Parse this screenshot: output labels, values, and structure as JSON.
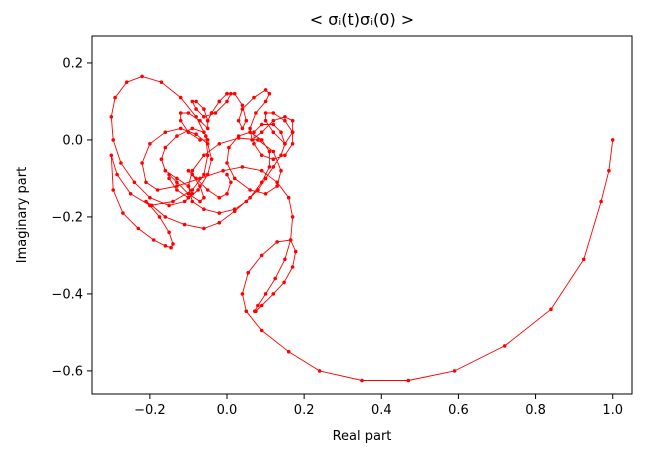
{
  "chart_data": {
    "type": "line",
    "title": "< σᵢ(t)σᵢ(0) >",
    "xlabel": "Real part",
    "ylabel": "Imaginary part",
    "xlim": [
      -0.35,
      1.05
    ],
    "ylim": [
      -0.66,
      0.27
    ],
    "xticks": [
      -0.2,
      0.0,
      0.2,
      0.4,
      0.6,
      0.8,
      1.0
    ],
    "xtick_labels": [
      "−0.2",
      "0.0",
      "0.2",
      "0.4",
      "0.6",
      "0.8",
      "1.0"
    ],
    "yticks": [
      -0.6,
      -0.4,
      -0.2,
      0.0,
      0.2
    ],
    "ytick_labels": [
      "−0.6",
      "−0.4",
      "−0.2",
      "0.0",
      "0.2"
    ],
    "grid": false,
    "legend": "none",
    "series": [
      {
        "color": "#ff0000",
        "marker": "dot",
        "x": [
          1.0,
          0.99,
          0.97,
          0.925,
          0.84,
          0.72,
          0.59,
          0.47,
          0.35,
          0.24,
          0.16,
          0.09,
          0.05,
          0.04,
          0.055,
          0.09,
          0.13,
          0.165,
          0.178,
          0.17,
          0.148,
          0.12,
          0.09,
          0.075,
          0.072,
          0.08,
          0.1,
          0.125,
          0.15,
          0.165,
          0.17,
          0.16,
          0.13,
          0.09,
          0.04,
          -0.01,
          -0.07,
          -0.13,
          -0.18,
          -0.21,
          -0.22,
          -0.2,
          -0.16,
          -0.12,
          -0.08,
          -0.05,
          -0.04,
          -0.05,
          -0.075,
          -0.11,
          -0.15,
          -0.2,
          -0.24,
          -0.275,
          -0.295,
          -0.3,
          -0.29,
          -0.26,
          -0.22,
          -0.17,
          -0.12,
          -0.08,
          -0.055,
          -0.05,
          -0.06,
          -0.09,
          -0.14,
          -0.2,
          -0.25,
          -0.285,
          -0.3,
          -0.295,
          -0.27,
          -0.23,
          -0.19,
          -0.16,
          -0.145,
          -0.14,
          -0.15,
          -0.175,
          -0.2,
          -0.21,
          -0.195,
          -0.16,
          -0.11,
          -0.06,
          -0.02,
          0.02,
          0.06,
          0.09,
          0.11,
          0.11,
          0.09,
          0.06,
          0.03,
          0.005,
          0.0,
          0.02,
          0.06,
          0.1,
          0.13,
          0.14,
          0.12,
          0.08,
          0.03,
          -0.02,
          -0.06,
          -0.09,
          -0.1,
          -0.09,
          -0.06,
          -0.02,
          0.02,
          0.05,
          0.08,
          0.1,
          0.12,
          0.14,
          0.15,
          0.14,
          0.12,
          0.09,
          0.07,
          0.07,
          0.09,
          0.12,
          0.15,
          0.17,
          0.17,
          0.15,
          0.12,
          0.1,
          0.1,
          0.12,
          0.15,
          0.17,
          0.17,
          0.15,
          0.12,
          0.09,
          0.065,
          0.06,
          0.075,
          0.1,
          0.11,
          0.1,
          0.07,
          0.04,
          0.03,
          0.04,
          0.05,
          0.04,
          0.02,
          0.0,
          -0.02,
          -0.04,
          -0.05,
          -0.04,
          -0.02,
          0.0,
          0.01,
          0.0,
          -0.03,
          -0.06,
          -0.08,
          -0.09,
          -0.08,
          -0.06,
          -0.05,
          -0.05,
          -0.07,
          -0.1,
          -0.12,
          -0.12,
          -0.1,
          -0.07,
          -0.05,
          -0.06,
          -0.09,
          -0.13,
          -0.16,
          -0.17,
          -0.16,
          -0.13,
          -0.1,
          -0.09,
          -0.1,
          -0.13,
          -0.15,
          -0.15,
          -0.13,
          -0.1,
          -0.07,
          -0.06,
          -0.07,
          -0.09,
          -0.1,
          -0.08,
          -0.05,
          -0.02,
          0.0,
          0.01,
          0.0
        ],
        "y": [
          0.0,
          -0.08,
          -0.16,
          -0.31,
          -0.44,
          -0.535,
          -0.6,
          -0.625,
          -0.625,
          -0.6,
          -0.55,
          -0.495,
          -0.445,
          -0.4,
          -0.345,
          -0.3,
          -0.265,
          -0.26,
          -0.29,
          -0.33,
          -0.37,
          -0.4,
          -0.43,
          -0.445,
          -0.445,
          -0.43,
          -0.4,
          -0.36,
          -0.31,
          -0.26,
          -0.2,
          -0.15,
          -0.11,
          -0.08,
          -0.07,
          -0.08,
          -0.1,
          -0.12,
          -0.13,
          -0.11,
          -0.06,
          -0.01,
          0.02,
          0.03,
          0.015,
          -0.01,
          -0.05,
          -0.09,
          -0.13,
          -0.16,
          -0.17,
          -0.15,
          -0.11,
          -0.06,
          0.0,
          0.06,
          0.11,
          0.15,
          0.165,
          0.15,
          0.11,
          0.06,
          0.01,
          -0.04,
          -0.09,
          -0.13,
          -0.16,
          -0.17,
          -0.14,
          -0.09,
          -0.04,
          -0.13,
          -0.19,
          -0.23,
          -0.26,
          -0.275,
          -0.28,
          -0.27,
          -0.24,
          -0.2,
          -0.17,
          -0.16,
          -0.17,
          -0.2,
          -0.22,
          -0.23,
          -0.215,
          -0.185,
          -0.15,
          -0.11,
          -0.07,
          -0.03,
          0.0,
          0.02,
          0.01,
          -0.02,
          -0.06,
          -0.1,
          -0.13,
          -0.14,
          -0.12,
          -0.08,
          -0.03,
          0.0,
          0.005,
          -0.01,
          -0.04,
          -0.08,
          -0.12,
          -0.16,
          -0.18,
          -0.19,
          -0.18,
          -0.16,
          -0.13,
          -0.1,
          -0.07,
          -0.04,
          -0.01,
          0.02,
          0.04,
          0.04,
          0.02,
          -0.01,
          -0.04,
          -0.05,
          -0.04,
          -0.01,
          0.02,
          0.05,
          0.07,
          0.07,
          0.05,
          0.02,
          -0.01,
          0.02,
          0.05,
          0.06,
          0.05,
          0.02,
          0.0,
          0.03,
          0.07,
          0.1,
          0.12,
          0.13,
          0.11,
          0.08,
          0.05,
          0.03,
          0.05,
          0.09,
          0.12,
          0.12,
          0.1,
          0.07,
          0.05,
          0.07,
          0.1,
          0.12,
          0.12,
          0.1,
          0.07,
          0.06,
          0.08,
          0.1,
          0.1,
          0.08,
          0.05,
          0.03,
          0.05,
          0.07,
          0.07,
          0.05,
          0.02,
          0.0,
          0.0,
          0.02,
          0.03,
          0.01,
          -0.02,
          -0.05,
          -0.08,
          -0.1,
          -0.12,
          -0.14,
          -0.15,
          -0.13,
          -0.1,
          -0.09,
          -0.11,
          -0.14,
          -0.16,
          -0.15,
          -0.12,
          -0.09,
          -0.08,
          -0.1,
          -0.13,
          -0.15,
          -0.14,
          -0.11,
          -0.09
        ]
      }
    ]
  }
}
